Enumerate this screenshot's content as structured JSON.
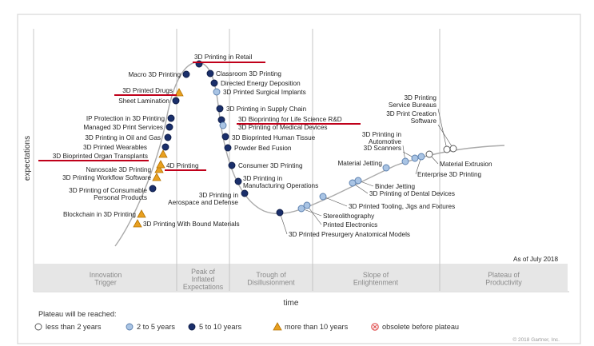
{
  "chart_data": {
    "type": "hype-cycle",
    "ylabel": "expectations",
    "xlabel": "time",
    "as_of": "As of July 2018",
    "copyright": "© 2018 Gartner, Inc.",
    "colors": {
      "curve": "#aaaaaa",
      "less_than_2": "#ffffff",
      "two_to_5": "#a9c4e4",
      "five_to_10": "#1a2f6b",
      "more_than_10": "#e8a020",
      "obsolete": "#e05050",
      "underline": "#c0001a",
      "phase_band": "#e6e6e6"
    },
    "phases": [
      {
        "name": "Innovation Trigger",
        "lines": [
          "Innovation",
          "Trigger"
        ]
      },
      {
        "name": "Peak of Inflated Expectations",
        "lines": [
          "Peak of",
          "Inflated",
          "Expectations"
        ]
      },
      {
        "name": "Trough of Disillusionment",
        "lines": [
          "Trough of",
          "Disillusionment"
        ]
      },
      {
        "name": "Slope of Enlightenment",
        "lines": [
          "Slope of",
          "Enlightenment"
        ]
      },
      {
        "name": "Plateau of Productivity",
        "lines": [
          "Plateau of",
          "Productivity"
        ]
      }
    ],
    "legend": {
      "title": "Plateau will be reached:",
      "items": [
        {
          "key": "less_than_2",
          "label": "less than 2 years"
        },
        {
          "key": "two_to_5",
          "label": "2 to 5 years"
        },
        {
          "key": "five_to_10",
          "label": "5 to 10 years"
        },
        {
          "key": "more_than_10",
          "label": "more than 10 years"
        },
        {
          "key": "obsolete",
          "label": "obsolete before plateau"
        }
      ]
    },
    "technologies": [
      {
        "name": "3D Printing With Bound Materials",
        "phase": "Innovation Trigger",
        "plateau": "more_than_10",
        "lines": [
          "3D Printing With Bound Materials"
        ]
      },
      {
        "name": "Blockchain in 3D Printing",
        "phase": "Innovation Trigger",
        "plateau": "more_than_10",
        "lines": [
          "Blockchain in 3D Printing"
        ]
      },
      {
        "name": "3D Printing of Consumable Personal Products",
        "phase": "Innovation Trigger",
        "plateau": "five_to_10",
        "lines": [
          "3D Printing of Consumable",
          "Personal Products"
        ]
      },
      {
        "name": "3D Printing Workflow Software",
        "phase": "Innovation Trigger",
        "plateau": "more_than_10",
        "lines": [
          "3D Printing Workflow Software"
        ]
      },
      {
        "name": "Nanoscale 3D Printing",
        "phase": "Innovation Trigger",
        "plateau": "more_than_10",
        "lines": [
          "Nanoscale 3D Printing"
        ]
      },
      {
        "name": "4D Printing",
        "phase": "Innovation Trigger",
        "plateau": "more_than_10",
        "lines": [
          "4D Printing"
        ],
        "highlighted": true
      },
      {
        "name": "3D Bioprinted Organ Transplants",
        "phase": "Innovation Trigger",
        "plateau": "more_than_10",
        "lines": [
          "3D Bioprinted Organ Transplants"
        ],
        "highlighted": true
      },
      {
        "name": "3D Printed Wearables",
        "phase": "Innovation Trigger",
        "plateau": "five_to_10",
        "lines": [
          "3D Printed Wearables"
        ]
      },
      {
        "name": "3D Printing in Oil and Gas",
        "phase": "Innovation Trigger",
        "plateau": "five_to_10",
        "lines": [
          "3D Printing in Oil and Gas"
        ]
      },
      {
        "name": "Managed 3D Print Services",
        "phase": "Innovation Trigger",
        "plateau": "five_to_10",
        "lines": [
          "Managed 3D Print Services"
        ]
      },
      {
        "name": "IP Protection in 3D Printing",
        "phase": "Innovation Trigger",
        "plateau": "five_to_10",
        "lines": [
          "IP Protection in 3D Printing"
        ]
      },
      {
        "name": "Sheet Lamination",
        "phase": "Peak of Inflated Expectations",
        "plateau": "five_to_10",
        "lines": [
          "Sheet Lamination"
        ]
      },
      {
        "name": "3D Printed Drugs",
        "phase": "Peak of Inflated Expectations",
        "plateau": "more_than_10",
        "lines": [
          "3D Printed Drugs"
        ],
        "highlighted": true
      },
      {
        "name": "Macro 3D Printing",
        "phase": "Peak of Inflated Expectations",
        "plateau": "five_to_10",
        "lines": [
          "Macro 3D Printing"
        ]
      },
      {
        "name": "3D Printing in Retail",
        "phase": "Peak of Inflated Expectations",
        "plateau": "five_to_10",
        "lines": [
          "3D Printing in Retail"
        ],
        "highlighted": true
      },
      {
        "name": "Classroom 3D Printing",
        "phase": "Peak of Inflated Expectations",
        "plateau": "five_to_10",
        "lines": [
          "Classroom 3D Printing"
        ]
      },
      {
        "name": "Directed Energy Deposition",
        "phase": "Peak of Inflated Expectations",
        "plateau": "five_to_10",
        "lines": [
          "Directed Energy Deposition"
        ]
      },
      {
        "name": "3D Printed Surgical Implants",
        "phase": "Peak of Inflated Expectations",
        "plateau": "two_to_5",
        "lines": [
          "3D Printed Surgical Implants"
        ]
      },
      {
        "name": "3D Printing in Supply Chain",
        "phase": "Trough of Disillusionment",
        "plateau": "five_to_10",
        "lines": [
          "3D Printing in Supply Chain"
        ]
      },
      {
        "name": "3D Bioprinting for Life Science R&D",
        "phase": "Trough of Disillusionment",
        "plateau": "five_to_10",
        "lines": [
          "3D Bioprinting for Life Science R&D"
        ],
        "highlighted": true
      },
      {
        "name": "3D Printing of Medical Devices",
        "phase": "Trough of Disillusionment",
        "plateau": "two_to_5",
        "lines": [
          "3D Printing of Medical Devices"
        ]
      },
      {
        "name": "3D Bioprinted Human Tissue",
        "phase": "Trough of Disillusionment",
        "plateau": "five_to_10",
        "lines": [
          "3D Bioprinted Human Tissue"
        ]
      },
      {
        "name": "Powder Bed Fusion",
        "phase": "Trough of Disillusionment",
        "plateau": "five_to_10",
        "lines": [
          "Powder Bed Fusion"
        ]
      },
      {
        "name": "Consumer 3D Printing",
        "phase": "Trough of Disillusionment",
        "plateau": "five_to_10",
        "lines": [
          "Consumer 3D Printing"
        ]
      },
      {
        "name": "3D Printing in Manufacturing Operations",
        "phase": "Trough of Disillusionment",
        "plateau": "five_to_10",
        "lines": [
          "3D Printing in",
          "Manufacturing Operations"
        ]
      },
      {
        "name": "3D Printing in Aerospace and Defense",
        "phase": "Trough of Disillusionment",
        "plateau": "five_to_10",
        "lines": [
          "3D Printing in",
          "Aerospace and Defense"
        ]
      },
      {
        "name": "3D Printed Presurgery Anatomical Models",
        "phase": "Trough of Disillusionment",
        "plateau": "five_to_10",
        "lines": [
          "3D Printed Presurgery Anatomical Models"
        ]
      },
      {
        "name": "Stereolithography",
        "phase": "Slope of Enlightenment",
        "plateau": "two_to_5",
        "lines": [
          "Stereolithography"
        ]
      },
      {
        "name": "Printed Electronics",
        "phase": "Slope of Enlightenment",
        "plateau": "two_to_5",
        "lines": [
          "Printed Electronics"
        ]
      },
      {
        "name": "3D Printed Tooling, Jigs and Fixtures",
        "phase": "Slope of Enlightenment",
        "plateau": "two_to_5",
        "lines": [
          "3D Printed Tooling, Jigs and Fixtures"
        ]
      },
      {
        "name": "3D Printing of Dental Devices",
        "phase": "Slope of Enlightenment",
        "plateau": "two_to_5",
        "lines": [
          "3D Printing of Dental Devices"
        ]
      },
      {
        "name": "Binder Jetting",
        "phase": "Slope of Enlightenment",
        "plateau": "two_to_5",
        "lines": [
          "Binder Jetting"
        ]
      },
      {
        "name": "Material Jetting",
        "phase": "Slope of Enlightenment",
        "plateau": "two_to_5",
        "lines": [
          "Material Jetting"
        ]
      },
      {
        "name": "3D Printing in Automotive",
        "phase": "Slope of Enlightenment",
        "plateau": "two_to_5",
        "lines": [
          "3D Printing in",
          "Automotive"
        ]
      },
      {
        "name": "3D Scanners",
        "phase": "Slope of Enlightenment",
        "plateau": "two_to_5",
        "lines": [
          "3D Scanners"
        ]
      },
      {
        "name": "Enterprise 3D Printing",
        "phase": "Slope of Enlightenment",
        "plateau": "two_to_5",
        "lines": [
          "Enterprise 3D Printing"
        ]
      },
      {
        "name": "Material Extrusion",
        "phase": "Slope of Enlightenment",
        "plateau": "less_than_2",
        "lines": [
          "Material Extrusion"
        ]
      },
      {
        "name": "3D Printing Service Bureaus",
        "phase": "Plateau of Productivity",
        "plateau": "less_than_2",
        "lines": [
          "3D Printing",
          "Service Bureaus"
        ]
      },
      {
        "name": "3D Print Creation Software",
        "phase": "Plateau of Productivity",
        "plateau": "less_than_2",
        "lines": [
          "3D Print Creation",
          "Software"
        ]
      }
    ]
  }
}
